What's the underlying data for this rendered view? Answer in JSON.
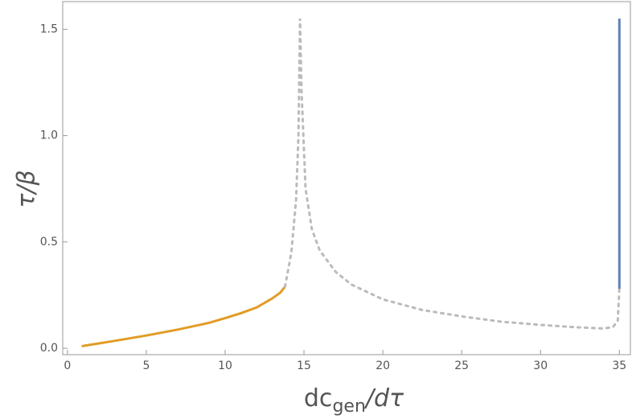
{
  "chart_data": {
    "type": "line",
    "xlabel": {
      "text": "dc",
      "subscript": "gen",
      "suffix": "/dτ"
    },
    "ylabel": "τ/β",
    "xlim": [
      -0.3,
      35.7
    ],
    "ylim": [
      -0.03,
      1.63
    ],
    "xticks": [
      0,
      5,
      10,
      15,
      20,
      25,
      30,
      35
    ],
    "yticks": [
      {
        "value": 0,
        "label": "0.0"
      },
      {
        "value": 0.5,
        "label": "0.5"
      },
      {
        "value": 1,
        "label": "1.0"
      },
      {
        "value": 1.5,
        "label": "1.5"
      }
    ],
    "grid": false,
    "series": [
      {
        "color": "#e19c24",
        "dash": false,
        "x": [
          0.9,
          3,
          5,
          7,
          9,
          10,
          11,
          12,
          13,
          13.5,
          13.8
        ],
        "values": [
          0.01,
          0.035,
          0.06,
          0.088,
          0.12,
          0.142,
          0.165,
          0.192,
          0.235,
          0.262,
          0.29
        ]
      },
      {
        "color": "#bbbbbb",
        "dash": true,
        "x": [
          13.8,
          14.2,
          14.5,
          14.65,
          14.75,
          14.85,
          15.1,
          15.5,
          16,
          17,
          18,
          20,
          22.5,
          25,
          27.5,
          30,
          32,
          34,
          34.6,
          34.9,
          35
        ],
        "values": [
          0.29,
          0.45,
          0.7,
          1.0,
          1.55,
          1.2,
          0.75,
          0.56,
          0.46,
          0.36,
          0.3,
          0.23,
          0.18,
          0.15,
          0.125,
          0.11,
          0.1,
          0.093,
          0.1,
          0.13,
          0.28
        ]
      },
      {
        "color": "#5e81b5",
        "dash": false,
        "x": [
          35,
          35
        ],
        "values": [
          0.28,
          1.55
        ]
      }
    ]
  }
}
